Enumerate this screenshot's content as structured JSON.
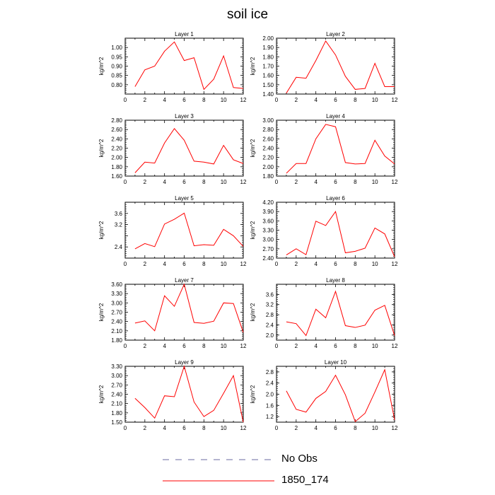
{
  "figure": {
    "title": "soil ice",
    "y_unit": "kg/m^2",
    "line_color": "#ff0000"
  },
  "legend": {
    "items": [
      {
        "label": "No Obs",
        "style": "dashed",
        "color": "#6a6aa0"
      },
      {
        "label": "1850_174",
        "style": "solid",
        "color": "#ff0000"
      }
    ]
  },
  "chart_data": [
    {
      "type": "line",
      "title": "Layer 1",
      "ylabel": "kg/m^2",
      "xlim": [
        0,
        12
      ],
      "ylim": [
        0.75,
        1.05
      ],
      "xticks": [
        0,
        2,
        4,
        6,
        8,
        10,
        12
      ],
      "yticks": [
        0.8,
        0.85,
        0.9,
        0.95,
        1.0
      ],
      "ytick_labels": [
        "0.80",
        "0.85",
        "0.90",
        "0.95",
        "1.00"
      ],
      "x": [
        1,
        2,
        3,
        4,
        5,
        6,
        7,
        8,
        9,
        10,
        11,
        12
      ],
      "series": [
        {
          "name": "1850_174",
          "values": [
            0.79,
            0.88,
            0.9,
            0.98,
            1.03,
            0.93,
            0.945,
            0.775,
            0.83,
            0.955,
            0.785,
            0.78
          ]
        }
      ]
    },
    {
      "type": "line",
      "title": "Layer 2",
      "ylabel": "kg/m^2",
      "xlim": [
        0,
        12
      ],
      "ylim": [
        1.4,
        2.0
      ],
      "xticks": [
        0,
        2,
        4,
        6,
        8,
        10,
        12
      ],
      "yticks": [
        1.4,
        1.5,
        1.6,
        1.7,
        1.8,
        1.9,
        2.0
      ],
      "ytick_labels": [
        "1.40",
        "1.50",
        "1.60",
        "1.70",
        "1.80",
        "1.90",
        "2.00"
      ],
      "x": [
        1,
        2,
        3,
        4,
        5,
        6,
        7,
        8,
        9,
        10,
        11,
        12
      ],
      "series": [
        {
          "name": "1850_174",
          "values": [
            1.41,
            1.58,
            1.57,
            1.76,
            1.97,
            1.82,
            1.59,
            1.45,
            1.46,
            1.73,
            1.48,
            1.48
          ]
        }
      ]
    },
    {
      "type": "line",
      "title": "Layer 3",
      "ylabel": "kg/m^2",
      "xlim": [
        0,
        12
      ],
      "ylim": [
        1.6,
        2.8
      ],
      "xticks": [
        0,
        2,
        4,
        6,
        8,
        10,
        12
      ],
      "yticks": [
        1.6,
        1.8,
        2.0,
        2.2,
        2.4,
        2.6,
        2.8
      ],
      "ytick_labels": [
        "1.60",
        "1.80",
        "2.00",
        "2.20",
        "2.40",
        "2.60",
        "2.80"
      ],
      "x": [
        1,
        2,
        3,
        4,
        5,
        6,
        7,
        8,
        9,
        10,
        11,
        12
      ],
      "series": [
        {
          "name": "1850_174",
          "values": [
            1.67,
            1.9,
            1.88,
            2.31,
            2.62,
            2.37,
            1.92,
            1.9,
            1.86,
            2.26,
            1.95,
            1.87
          ]
        }
      ]
    },
    {
      "type": "line",
      "title": "Layer 4",
      "ylabel": "kg/m^2",
      "xlim": [
        0,
        12
      ],
      "ylim": [
        1.8,
        3.0
      ],
      "xticks": [
        0,
        2,
        4,
        6,
        8,
        10,
        12
      ],
      "yticks": [
        1.8,
        2.0,
        2.2,
        2.4,
        2.6,
        2.8,
        3.0
      ],
      "ytick_labels": [
        "1.80",
        "2.00",
        "2.20",
        "2.40",
        "2.60",
        "2.80",
        "3.00"
      ],
      "x": [
        1,
        2,
        3,
        4,
        5,
        6,
        7,
        8,
        9,
        10,
        11,
        12
      ],
      "series": [
        {
          "name": "1850_174",
          "values": [
            1.86,
            2.07,
            2.07,
            2.6,
            2.91,
            2.86,
            2.09,
            2.06,
            2.07,
            2.57,
            2.23,
            2.06
          ]
        }
      ]
    },
    {
      "type": "line",
      "title": "Layer 5",
      "ylabel": "kg/m^2",
      "xlim": [
        0,
        12
      ],
      "ylim": [
        2.0,
        4.0
      ],
      "xticks": [
        0,
        2,
        4,
        6,
        8,
        10,
        12
      ],
      "yticks": [
        2.4,
        2.8,
        3.2,
        3.6
      ],
      "ytick_labels": [
        "2.4",
        "",
        "3.2",
        "3.6"
      ],
      "x": [
        1,
        2,
        3,
        4,
        5,
        6,
        7,
        8,
        9,
        10,
        11,
        12
      ],
      "series": [
        {
          "name": "1850_174",
          "values": [
            2.33,
            2.52,
            2.41,
            3.22,
            3.39,
            3.61,
            2.44,
            2.48,
            2.46,
            3.03,
            2.8,
            2.42
          ]
        }
      ]
    },
    {
      "type": "line",
      "title": "Layer 6",
      "ylabel": "kg/m^2",
      "xlim": [
        0,
        12
      ],
      "ylim": [
        2.4,
        4.2
      ],
      "xticks": [
        0,
        2,
        4,
        6,
        8,
        10,
        12
      ],
      "yticks": [
        2.4,
        2.7,
        3.0,
        3.3,
        3.6,
        3.9,
        4.2
      ],
      "ytick_labels": [
        "2.40",
        "2.70",
        "3.00",
        "3.30",
        "3.60",
        "3.90",
        "4.20"
      ],
      "x": [
        1,
        2,
        3,
        4,
        5,
        6,
        7,
        8,
        9,
        10,
        11,
        12
      ],
      "series": [
        {
          "name": "1850_174",
          "values": [
            2.5,
            2.7,
            2.51,
            3.59,
            3.45,
            3.9,
            2.57,
            2.62,
            2.72,
            3.37,
            3.18,
            2.44
          ]
        }
      ]
    },
    {
      "type": "line",
      "title": "Layer 7",
      "ylabel": "kg/m^2",
      "xlim": [
        0,
        12
      ],
      "ylim": [
        1.8,
        3.6
      ],
      "xticks": [
        0,
        2,
        4,
        6,
        8,
        10,
        12
      ],
      "yticks": [
        1.8,
        2.1,
        2.4,
        2.7,
        3.0,
        3.3,
        3.6
      ],
      "ytick_labels": [
        "1.80",
        "2.10",
        "2.40",
        "2.70",
        "3.00",
        "3.30",
        "3.60"
      ],
      "x": [
        1,
        2,
        3,
        4,
        5,
        6,
        7,
        8,
        9,
        10,
        11,
        12
      ],
      "series": [
        {
          "name": "1850_174",
          "values": [
            2.35,
            2.42,
            2.1,
            3.23,
            2.89,
            3.6,
            2.37,
            2.34,
            2.41,
            3.0,
            2.98,
            2.05
          ]
        }
      ]
    },
    {
      "type": "line",
      "title": "Layer 8",
      "ylabel": "kg/m^2",
      "xlim": [
        0,
        12
      ],
      "ylim": [
        1.8,
        4.0
      ],
      "xticks": [
        0,
        2,
        4,
        6,
        8,
        10,
        12
      ],
      "yticks": [
        2.0,
        2.4,
        2.8,
        3.2,
        3.6
      ],
      "ytick_labels": [
        "2.0",
        "2.4",
        "2.8",
        "3.2",
        "3.6"
      ],
      "x": [
        1,
        2,
        3,
        4,
        5,
        6,
        7,
        8,
        9,
        10,
        11,
        12
      ],
      "series": [
        {
          "name": "1850_174",
          "values": [
            2.52,
            2.45,
            1.98,
            3.02,
            2.68,
            3.72,
            2.37,
            2.3,
            2.39,
            2.98,
            3.17,
            1.98
          ]
        }
      ]
    },
    {
      "type": "line",
      "title": "Layer 9",
      "ylabel": "kg/m^2",
      "xlim": [
        0,
        12
      ],
      "ylim": [
        1.5,
        3.3
      ],
      "xticks": [
        0,
        2,
        4,
        6,
        8,
        10,
        12
      ],
      "yticks": [
        1.5,
        1.8,
        2.1,
        2.4,
        2.7,
        3.0,
        3.3
      ],
      "ytick_labels": [
        "1.50",
        "1.80",
        "2.10",
        "2.40",
        "2.70",
        "3.00",
        "3.30"
      ],
      "x": [
        1,
        2,
        3,
        4,
        5,
        6,
        7,
        8,
        9,
        10,
        11,
        12
      ],
      "series": [
        {
          "name": "1850_174",
          "values": [
            2.27,
            1.97,
            1.63,
            2.35,
            2.32,
            3.3,
            2.15,
            1.68,
            1.88,
            2.43,
            3.0,
            1.5
          ]
        }
      ]
    },
    {
      "type": "line",
      "title": "Layer 10",
      "ylabel": "kg/m^2",
      "xlim": [
        0,
        12
      ],
      "ylim": [
        1.0,
        3.0
      ],
      "xticks": [
        0,
        2,
        4,
        6,
        8,
        10,
        12
      ],
      "yticks": [
        1.2,
        1.6,
        2.0,
        2.4,
        2.8
      ],
      "ytick_labels": [
        "1.2",
        "1.6",
        "2.0",
        "2.4",
        "2.8"
      ],
      "x": [
        1,
        2,
        3,
        4,
        5,
        6,
        7,
        8,
        9,
        10,
        11,
        12
      ],
      "series": [
        {
          "name": "1850_174",
          "values": [
            2.12,
            1.46,
            1.36,
            1.85,
            2.1,
            2.68,
            1.98,
            1.02,
            1.32,
            2.08,
            2.88,
            1.08
          ]
        }
      ]
    }
  ]
}
